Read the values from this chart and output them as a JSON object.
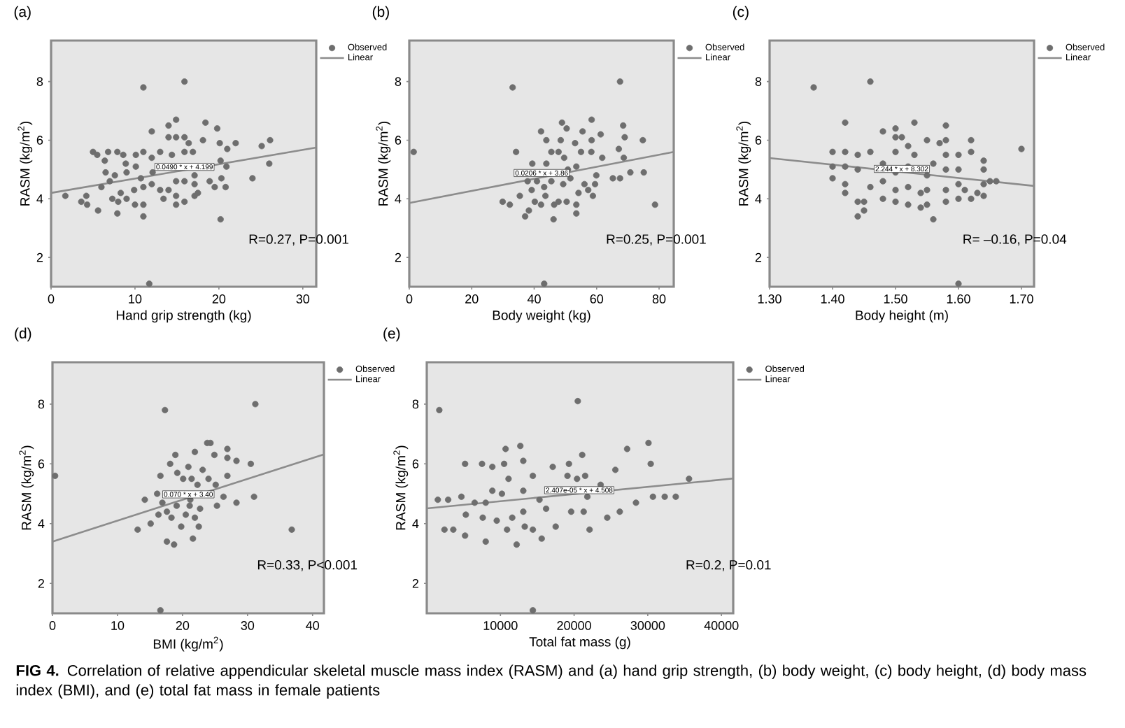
{
  "chart_data": [
    {
      "type": "scatter",
      "title": "(a)",
      "xlabel": "Hand grip strength (kg)",
      "ylabel": "RASM (kg/m$^{2}$)",
      "xlim": [
        0,
        31.6
      ],
      "ylim": [
        1,
        9.4
      ],
      "xticks": [
        0,
        10,
        20,
        30
      ],
      "yticks": [
        2,
        4,
        6,
        8
      ],
      "legend": "top right",
      "series": [
        {
          "name": "Observed",
          "color": "#6e6e6e",
          "x": [
            1.7,
            3.6,
            4.2,
            4.3,
            5.6,
            5.0,
            5.5,
            6.4,
            6.8,
            6.5,
            6.0,
            7.0,
            7.3,
            7.9,
            8.6,
            7.9,
            8.0,
            7.6,
            8.3,
            8.9,
            9.0,
            10.0,
            10.1,
            11.0,
            11.0,
            11.0,
            11.0,
            10.1,
            9.9,
            10.7,
            11.0,
            12.0,
            12.0,
            12.0,
            12.1,
            13.0,
            13.0,
            13.4,
            14.0,
            14.0,
            14.0,
            14.4,
            14.9,
            14.9,
            14.9,
            14.9,
            14.9,
            15.9,
            15.9,
            15.9,
            15.9,
            15.9,
            16.9,
            17.1,
            17.1,
            17.1,
            17.5,
            16.4,
            18.1,
            18.4,
            18.9,
            19.5,
            19.8,
            20.1,
            20.2,
            20.2,
            20.3,
            20.8,
            20.9,
            21.0,
            22.0,
            24.0,
            25.1,
            26.0,
            26.1,
            11.7,
            9.0
          ],
          "values": [
            4.1,
            3.9,
            4.1,
            3.8,
            3.6,
            5.6,
            5.5,
            5.3,
            5.6,
            4.9,
            4.4,
            4.6,
            4.0,
            5.6,
            5.5,
            3.5,
            3.9,
            4.8,
            4.2,
            5.2,
            4.0,
            3.8,
            5.5,
            5.6,
            7.8,
            3.8,
            3.4,
            5.1,
            4.3,
            4.7,
            4.4,
            6.3,
            5.4,
            4.5,
            4.9,
            5.6,
            4.3,
            4.0,
            4.3,
            6.5,
            6.1,
            5.5,
            6.7,
            6.1,
            3.8,
            4.6,
            4.1,
            8.0,
            6.1,
            5.6,
            4.6,
            3.9,
            5.6,
            4.8,
            4.5,
            4.1,
            4.2,
            5.9,
            6.0,
            6.6,
            4.6,
            4.4,
            6.4,
            5.9,
            5.3,
            3.3,
            4.7,
            4.4,
            5.1,
            5.7,
            5.9,
            4.7,
            5.8,
            5.2,
            6.0,
            1.1,
            4.9
          ]
        },
        {
          "name": "Linear",
          "type": "line",
          "marker": "none",
          "color": "#8c8c8c",
          "x": [
            0,
            31.6
          ],
          "values": [
            4.2,
            5.75
          ]
        }
      ],
      "annotations": [
        {
          "text": "0.0490 * x + 4.199",
          "x": 15.9,
          "y": 5.09
        },
        "R=0.27, P=0.001",
        "**FIG 4.** Correlation of relative appendicular skeletal muscle mass index (RASM) and (a) hand grip strength, (b) body weight, (c) body height, (d) body mass index (BMI), and (e) total fat mass in female patients"
      ]
    },
    {
      "type": "scatter",
      "title": "(b)",
      "xlabel": "Body weight (kg)",
      "ylabel": "RASM (kg/m$^{2}$)",
      "xlim": [
        0,
        84.7
      ],
      "ylim": [
        1,
        9.4
      ],
      "xticks": [
        0,
        20,
        40,
        60,
        80
      ],
      "yticks": [
        2,
        4,
        6,
        8
      ],
      "legend": "top right",
      "series": [
        {
          "name": "Observed",
          "color": "#6e6e6e",
          "x": [
            1.4,
            33.1,
            34.2,
            29.9,
            32.2,
            37.1,
            38.3,
            35.4,
            39.4,
            39.2,
            40.2,
            40.9,
            42.2,
            42.2,
            43.2,
            43.9,
            43.9,
            43.6,
            45.5,
            45.5,
            46.2,
            46.4,
            47.8,
            47.8,
            48.5,
            48.9,
            50.4,
            50.4,
            49.6,
            49.3,
            50.8,
            51.6,
            53.1,
            53.5,
            53.5,
            53.5,
            54.2,
            55.0,
            55.5,
            56.1,
            57.3,
            58.4,
            58.4,
            58.3,
            58.8,
            59.9,
            61.3,
            61.8,
            65.2,
            67.1,
            67.5,
            67.5,
            68.5,
            68.7,
            69.0,
            70.8,
            74.8,
            75.1,
            78.7,
            43.2,
            59.5,
            37.9
          ],
          "values": [
            5.6,
            7.8,
            5.6,
            3.9,
            3.8,
            3.4,
            3.6,
            4.1,
            5.2,
            4.3,
            3.9,
            4.6,
            6.3,
            3.8,
            4.4,
            5.2,
            6.0,
            4.1,
            5.6,
            4.6,
            3.3,
            3.8,
            5.6,
            3.9,
            6.0,
            6.6,
            6.4,
            3.9,
            5.4,
            4.5,
            5.0,
            4.7,
            5.9,
            5.1,
            3.5,
            3.8,
            4.2,
            5.6,
            6.3,
            4.5,
            4.3,
            6.7,
            6.0,
            5.6,
            4.1,
            4.8,
            6.2,
            5.4,
            4.7,
            5.7,
            8.0,
            4.7,
            6.5,
            5.4,
            6.1,
            4.9,
            6.0,
            4.9,
            3.8,
            1.1,
            4.5,
            4.6
          ]
        },
        {
          "name": "Linear",
          "type": "line",
          "marker": "none",
          "color": "#8c8c8c",
          "x": [
            0,
            84.7
          ],
          "values": [
            3.86,
            5.6
          ]
        }
      ],
      "annotations": [
        {
          "text": "0.0206 * x + 3.86",
          "x": 42.4,
          "y": 4.88
        },
        "R=0.25, P=0.001"
      ]
    },
    {
      "type": "scatter",
      "title": "(c)",
      "xlabel": "Body height (m)",
      "ylabel": "RASM (kg/m$^{2}$)",
      "xlim": [
        1.3,
        1.72
      ],
      "ylim": [
        1,
        9.4
      ],
      "xticks": [
        {
          "value": 1.3,
          "label": "1.30"
        },
        {
          "value": 1.4,
          "label": "1.40"
        },
        {
          "value": 1.5,
          "label": "1.50"
        },
        {
          "value": 1.6,
          "label": "1.60"
        },
        {
          "value": 1.7,
          "label": "1.70"
        }
      ],
      "yticks": [
        2,
        4,
        6,
        8
      ],
      "legend": "top right",
      "series": [
        {
          "name": "Observed",
          "color": "#6e6e6e",
          "x": [
            1.37,
            1.46,
            1.4,
            1.4,
            1.4,
            1.42,
            1.42,
            1.42,
            1.42,
            1.42,
            1.44,
            1.44,
            1.44,
            1.44,
            1.45,
            1.45,
            1.46,
            1.46,
            1.48,
            1.48,
            1.48,
            1.48,
            1.5,
            1.5,
            1.5,
            1.5,
            1.5,
            1.5,
            1.51,
            1.52,
            1.52,
            1.52,
            1.52,
            1.53,
            1.53,
            1.54,
            1.54,
            1.55,
            1.55,
            1.55,
            1.55,
            1.56,
            1.56,
            1.57,
            1.58,
            1.58,
            1.58,
            1.58,
            1.58,
            1.58,
            1.6,
            1.6,
            1.6,
            1.6,
            1.61,
            1.62,
            1.62,
            1.62,
            1.63,
            1.64,
            1.64,
            1.64,
            1.64,
            1.65,
            1.66,
            1.7,
            1.6
          ],
          "values": [
            7.8,
            8.0,
            5.6,
            5.1,
            4.7,
            6.6,
            5.6,
            5.1,
            4.5,
            4.2,
            5.5,
            5.0,
            3.9,
            3.4,
            3.9,
            3.6,
            5.6,
            4.4,
            6.3,
            5.2,
            4.6,
            4.0,
            6.4,
            6.1,
            5.6,
            4.9,
            4.3,
            3.9,
            6.1,
            5.8,
            5.1,
            4.4,
            3.8,
            6.6,
            5.5,
            4.2,
            3.7,
            6.0,
            4.8,
            4.3,
            3.8,
            5.2,
            3.3,
            5.9,
            6.5,
            6.0,
            5.5,
            5.0,
            4.3,
            3.9,
            5.5,
            5.0,
            4.5,
            4.0,
            4.3,
            6.0,
            5.6,
            4.0,
            4.2,
            5.3,
            5.0,
            4.5,
            4.1,
            4.6,
            4.6,
            5.7,
            1.1
          ]
        },
        {
          "name": "Linear",
          "type": "line",
          "marker": "none",
          "color": "#8c8c8c",
          "x": [
            1.3,
            1.72
          ],
          "values": [
            5.39,
            4.44
          ]
        }
      ],
      "annotations": [
        {
          "text": "2.244 * x + 8.302",
          "x": 1.51,
          "y": 5.02
        },
        "R= –0.16, P=0.04"
      ]
    },
    {
      "type": "scatter",
      "title": "(d)",
      "xlabel": "BMI (kg/m$^{2}$)",
      "ylabel": "RASM (kg/m$^{2}$)",
      "xlim": [
        0,
        41.75
      ],
      "ylim": [
        1,
        9.4
      ],
      "xticks": [
        0,
        10,
        20,
        30,
        40
      ],
      "yticks": [
        2,
        4,
        6,
        8
      ],
      "legend": "top right",
      "series": [
        {
          "name": "Observed",
          "color": "#6e6e6e",
          "x": [
            0.4,
            17.3,
            31.2,
            13.1,
            14.2,
            15.1,
            16.6,
            16.1,
            16.3,
            17.6,
            18.7,
            18.1,
            18.9,
            19.2,
            19.1,
            19.4,
            19.8,
            20.1,
            20.9,
            21.2,
            21.6,
            21.9,
            21.9,
            22.3,
            22.7,
            22.5,
            23.1,
            23.8,
            24.3,
            24.0,
            24.9,
            25.1,
            25.3,
            26.3,
            26.9,
            26.9,
            26.9,
            28.3,
            28.3,
            30.5,
            31.0,
            36.8,
            16.6,
            17.6,
            18.3,
            16.9,
            20.5,
            21.4,
            21.1
          ],
          "values": [
            5.6,
            7.8,
            8.0,
            3.8,
            4.8,
            4.0,
            5.6,
            5.0,
            4.3,
            3.4,
            3.3,
            6.0,
            6.3,
            5.7,
            4.6,
            null,
            3.9,
            5.5,
            5.9,
            4.8,
            3.5,
            6.4,
            4.2,
            5.3,
            4.5,
            3.9,
            5.8,
            6.7,
            6.7,
            5.5,
            6.3,
            5.3,
            4.6,
            4.9,
            6.2,
            6.5,
            5.6,
            6.1,
            4.7,
            6.0,
            4.9,
            3.8,
            1.1,
            4.4,
            4.2,
            4.7,
            4.3,
            5.5,
            4.6
          ]
        },
        {
          "name": "Linear",
          "type": "line",
          "marker": "none",
          "color": "#8c8c8c",
          "x": [
            0,
            41.75
          ],
          "values": [
            3.4,
            6.32
          ]
        }
      ],
      "annotations": [
        {
          "text": "0.070 * x + 3.40",
          "x": 20.9,
          "y": 4.98
        },
        "R=0.33, P<0.001"
      ]
    },
    {
      "type": "scatter",
      "title": "(e)",
      "xlabel": "Total fat mass (g)",
      "ylabel": "RASM (kg/m$^{2}$)",
      "xlim": [
        0,
        41600
      ],
      "ylim": [
        1,
        9.4
      ],
      "xticks": [
        10000,
        20000,
        30000,
        40000
      ],
      "yticks": [
        2,
        4,
        6,
        8
      ],
      "legend": "top right",
      "series": [
        {
          "name": "Observed",
          "color": "#6e6e6e",
          "x": [
            1700,
            20500,
            1500,
            2900,
            2400,
            3600,
            5200,
            5200,
            5300,
            4700,
            6500,
            7500,
            7600,
            8000,
            8000,
            8900,
            8900,
            9500,
            10200,
            10500,
            10700,
            10900,
            11100,
            11600,
            12200,
            12700,
            13100,
            13100,
            13100,
            13300,
            14400,
            14400,
            14400,
            15300,
            15600,
            16200,
            17100,
            17500,
            19100,
            19300,
            19600,
            20400,
            21100,
            21500,
            21300,
            22100,
            21800,
            23600,
            24500,
            25600,
            26200,
            27200,
            28400,
            30100,
            30400,
            30700,
            32300,
            33800,
            35600
          ],
          "values": [
            7.8,
            8.1,
            4.8,
            4.8,
            3.8,
            3.8,
            6.0,
            3.6,
            4.3,
            4.9,
            4.7,
            6.0,
            4.2,
            4.7,
            3.4,
            5.9,
            5.1,
            4.1,
            5.0,
            6.0,
            6.5,
            3.8,
            5.5,
            4.2,
            3.3,
            6.6,
            6.1,
            5.1,
            4.4,
            3.9,
            5.6,
            3.8,
            1.1,
            4.8,
            3.5,
            4.5,
            5.9,
            3.9,
            5.6,
            6.0,
            4.4,
            5.5,
            6.3,
            5.6,
            4.4,
            3.8,
            4.9,
            5.3,
            4.2,
            5.8,
            4.4,
            6.5,
            4.7,
            6.7,
            6.0,
            4.9,
            4.9,
            4.9,
            5.5
          ]
        },
        {
          "name": "Linear",
          "type": "line",
          "marker": "none",
          "color": "#8c8c8c",
          "x": [
            0,
            41600
          ],
          "values": [
            4.51,
            5.51
          ]
        }
      ],
      "annotations": [
        {
          "text": "2.407e-05 * x + 4.508",
          "x": 20700,
          "y": 5.12
        },
        "R=0.2, P=0.01"
      ]
    }
  ]
}
